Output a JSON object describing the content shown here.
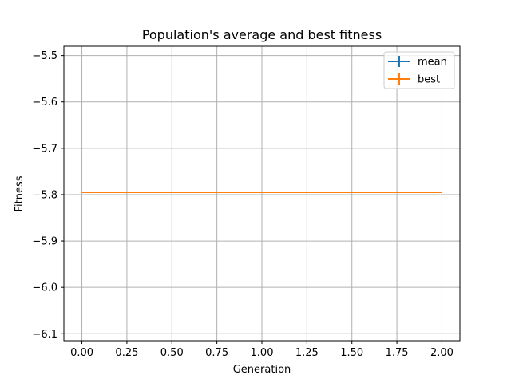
{
  "chart_data": {
    "type": "line",
    "title": "Population's average and best fitness",
    "xlabel": "Generation",
    "ylabel": "Fitness",
    "xlim": [
      -0.1,
      2.1
    ],
    "ylim": [
      -6.115,
      -5.48
    ],
    "x_ticks": [
      0.0,
      0.25,
      0.5,
      0.75,
      1.0,
      1.25,
      1.5,
      1.75,
      2.0
    ],
    "x_tick_labels": [
      "0.00",
      "0.25",
      "0.50",
      "0.75",
      "1.00",
      "1.25",
      "1.50",
      "1.75",
      "2.00"
    ],
    "y_ticks": [
      -5.5,
      -5.6,
      -5.7,
      -5.8,
      -5.9,
      -6.0,
      -6.1
    ],
    "y_tick_labels": [
      "−5.5",
      "−5.6",
      "−5.7",
      "−5.8",
      "−5.9",
      "−6.0",
      "−6.1"
    ],
    "grid": true,
    "legend_position": "top-right",
    "x": [
      0,
      1,
      2
    ],
    "series": [
      {
        "name": "mean",
        "values": [
          -5.795,
          -5.795,
          -5.795
        ],
        "color": "#1f77b4"
      },
      {
        "name": "best",
        "values": [
          -5.795,
          -5.795,
          -5.795
        ],
        "color": "#ff7f0e"
      }
    ]
  }
}
